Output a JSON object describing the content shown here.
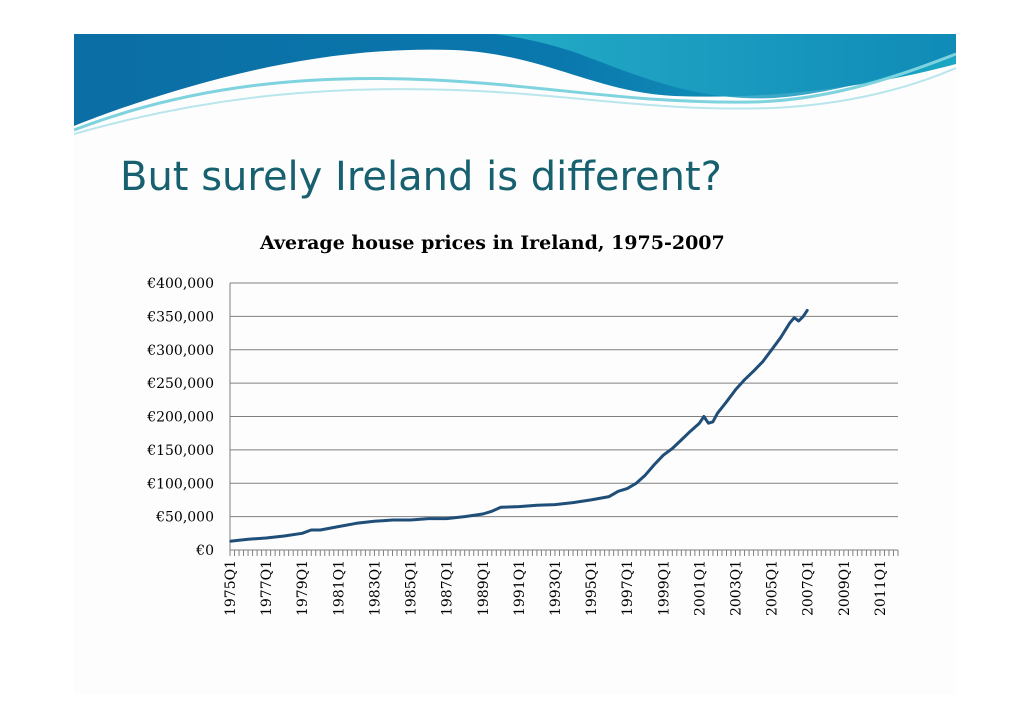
{
  "slide": {
    "title": "But surely Ireland is different?"
  },
  "colors": {
    "title": "#17606f",
    "line": "#1f4e79",
    "grid": "#808080",
    "banner_dark": "#0a5f8e",
    "banner_light": "#2bb6c9"
  },
  "chart_data": {
    "type": "line",
    "title": "Average house prices in Ireland, 1975-2007",
    "xlabel": "",
    "ylabel": "",
    "ylim": [
      0,
      400000
    ],
    "ytick_values": [
      0,
      50000,
      100000,
      150000,
      200000,
      250000,
      300000,
      350000,
      400000
    ],
    "ytick_labels": [
      "€0",
      "€50,000",
      "€100,000",
      "€150,000",
      "€200,000",
      "€250,000",
      "€300,000",
      "€350,000",
      "€400,000"
    ],
    "x_start": "1975Q1",
    "x_end": "2012Q1",
    "xtick_labels": [
      "1975Q1",
      "1977Q1",
      "1979Q1",
      "1981Q1",
      "1983Q1",
      "1985Q1",
      "1987Q1",
      "1989Q1",
      "1991Q1",
      "1993Q1",
      "1995Q1",
      "1997Q1",
      "1999Q1",
      "2001Q1",
      "2003Q1",
      "2005Q1",
      "2007Q1",
      "2009Q1",
      "2011Q1"
    ],
    "grid": true,
    "legend": "none",
    "series": [
      {
        "points": [
          [
            "1975Q1",
            13000
          ],
          [
            "1976Q1",
            16000
          ],
          [
            "1977Q1",
            18000
          ],
          [
            "1978Q1",
            21000
          ],
          [
            "1979Q1",
            25000
          ],
          [
            "1979Q3",
            30000
          ],
          [
            "1980Q1",
            30000
          ],
          [
            "1981Q1",
            35000
          ],
          [
            "1982Q1",
            40000
          ],
          [
            "1983Q1",
            43000
          ],
          [
            "1984Q1",
            45000
          ],
          [
            "1985Q1",
            45000
          ],
          [
            "1986Q1",
            47000
          ],
          [
            "1987Q1",
            47000
          ],
          [
            "1988Q1",
            50000
          ],
          [
            "1989Q1",
            54000
          ],
          [
            "1989Q3",
            58000
          ],
          [
            "1990Q1",
            64000
          ],
          [
            "1991Q1",
            65000
          ],
          [
            "1992Q1",
            67000
          ],
          [
            "1993Q1",
            68000
          ],
          [
            "1994Q1",
            71000
          ],
          [
            "1995Q1",
            75000
          ],
          [
            "1996Q1",
            80000
          ],
          [
            "1996Q3",
            88000
          ],
          [
            "1997Q1",
            92000
          ],
          [
            "1997Q3",
            100000
          ],
          [
            "1998Q1",
            112000
          ],
          [
            "1998Q3",
            128000
          ],
          [
            "1999Q1",
            142000
          ],
          [
            "1999Q3",
            152000
          ],
          [
            "2000Q1",
            165000
          ],
          [
            "2000Q3",
            178000
          ],
          [
            "2001Q1",
            190000
          ],
          [
            "2001Q2",
            200000
          ],
          [
            "2001Q3",
            190000
          ],
          [
            "2001Q4",
            192000
          ],
          [
            "2002Q1",
            205000
          ],
          [
            "2002Q3",
            222000
          ],
          [
            "2003Q1",
            240000
          ],
          [
            "2003Q3",
            255000
          ],
          [
            "2004Q1",
            268000
          ],
          [
            "2004Q3",
            282000
          ],
          [
            "2005Q1",
            300000
          ],
          [
            "2005Q3",
            318000
          ],
          [
            "2006Q1",
            340000
          ],
          [
            "2006Q2",
            348000
          ],
          [
            "2006Q3",
            343000
          ],
          [
            "2006Q4",
            350000
          ],
          [
            "2007Q1",
            360000
          ]
        ]
      }
    ]
  }
}
